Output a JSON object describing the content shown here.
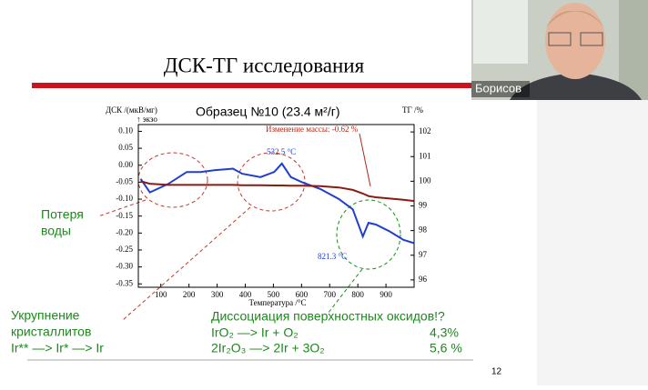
{
  "slide": {
    "title": "ДСК-ТГ исследования",
    "notes": [
      "Потеря",
      "воды",
      "Укрупнение",
      "кристаллитов",
      "Ir** —> Ir* —> Ir",
      "Диссоциация поверхностных оксидов!?",
      "IrO₂ —> Ir + O₂",
      "4,3%",
      "2Ir₂O₃ —> 2Ir + 3O₂",
      "5,6 %"
    ],
    "page_number": "12"
  },
  "webcam": {
    "name": "Борисов"
  },
  "chart_data": {
    "type": "line",
    "title": "Образец №10 (23.4 м²/г)",
    "y_label": "ДСК /(мкВ/мг)",
    "y_note": "↑ экзо",
    "y2_label": "ТГ /%",
    "x_label": "Температура /°C",
    "annotations": [
      "532.5 °C",
      "821.3 °C",
      "Изменение массы: -0.62 %"
    ],
    "x": [
      28,
      61,
      126,
      192,
      241,
      290,
      356,
      389,
      454,
      503,
      530,
      562,
      602,
      667,
      733,
      782,
      818,
      838,
      864,
      913,
      962,
      1000
    ],
    "series": [
      {
        "name": "ДСК",
        "color": "#1f3fd0",
        "values": [
          -0.04,
          -0.08,
          -0.055,
          -0.02,
          -0.02,
          -0.015,
          -0.01,
          -0.025,
          -0.035,
          -0.02,
          0.005,
          -0.035,
          -0.05,
          -0.07,
          -0.1,
          -0.13,
          -0.21,
          -0.17,
          -0.175,
          -0.195,
          -0.22,
          -0.23
        ]
      },
      {
        "name": "ТГ",
        "color": "#8b1a10",
        "axis": "y2",
        "values": [
          100.0,
          99.9,
          99.85,
          99.85,
          99.85,
          99.85,
          99.85,
          99.84,
          99.84,
          99.83,
          99.83,
          99.82,
          99.82,
          99.8,
          99.75,
          99.65,
          99.5,
          99.4,
          99.35,
          99.3,
          99.25,
          99.2
        ]
      }
    ],
    "xlim": [
      20,
      1000
    ],
    "xticks": [
      100,
      200,
      300,
      400,
      500,
      600,
      700,
      800,
      900
    ],
    "ylim": [
      -0.36,
      0.12
    ],
    "yticks": [
      {
        "value": 0.1,
        "label": "0.10"
      },
      0.05,
      {
        "value": 0,
        "label": "0.00"
      },
      -0.05,
      {
        "value": -0.1,
        "label": "-0.10"
      },
      -0.15,
      {
        "value": -0.2,
        "label": "-0.20"
      },
      -0.25,
      {
        "value": -0.3,
        "label": "-0.30"
      },
      -0.35
    ],
    "y2lim": [
      95.7,
      102.3
    ],
    "y2ticks": [
      96,
      97,
      98,
      99,
      100,
      101,
      102
    ]
  }
}
